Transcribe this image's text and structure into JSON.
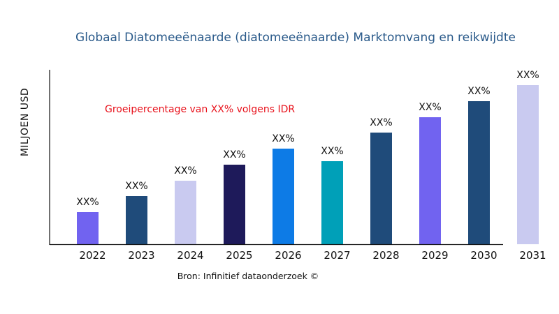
{
  "chart_data": {
    "type": "bar",
    "title": "Globaal Diatomeeënaarde (diatomeeënaarde) Marktomvang en reikwijdte",
    "xlabel": "",
    "ylabel": "MILJOEN USD",
    "annotation": "Groeipercentage van XX% volgens IDR",
    "source": "Bron: Infinitief dataonderzoek ©",
    "categories": [
      "2022",
      "2023",
      "2024",
      "2025",
      "2026",
      "2027",
      "2028",
      "2029",
      "2030",
      "2031"
    ],
    "values": [
      46,
      69,
      91,
      114,
      137,
      119,
      160,
      182,
      205,
      228
    ],
    "data_labels": [
      "XX%",
      "XX%",
      "XX%",
      "XX%",
      "XX%",
      "XX%",
      "XX%",
      "XX%",
      "XX%",
      "XX%"
    ],
    "colors": [
      "#7163f0",
      "#1f4b7a",
      "#c9caf0",
      "#1e1a5a",
      "#0d7be6",
      "#00a0b8",
      "#1f4b7a",
      "#7163f0",
      "#1f4b7a",
      "#c9caf0"
    ],
    "ylim": [
      0,
      250
    ],
    "grid": false,
    "y_ticks_shown": false
  }
}
